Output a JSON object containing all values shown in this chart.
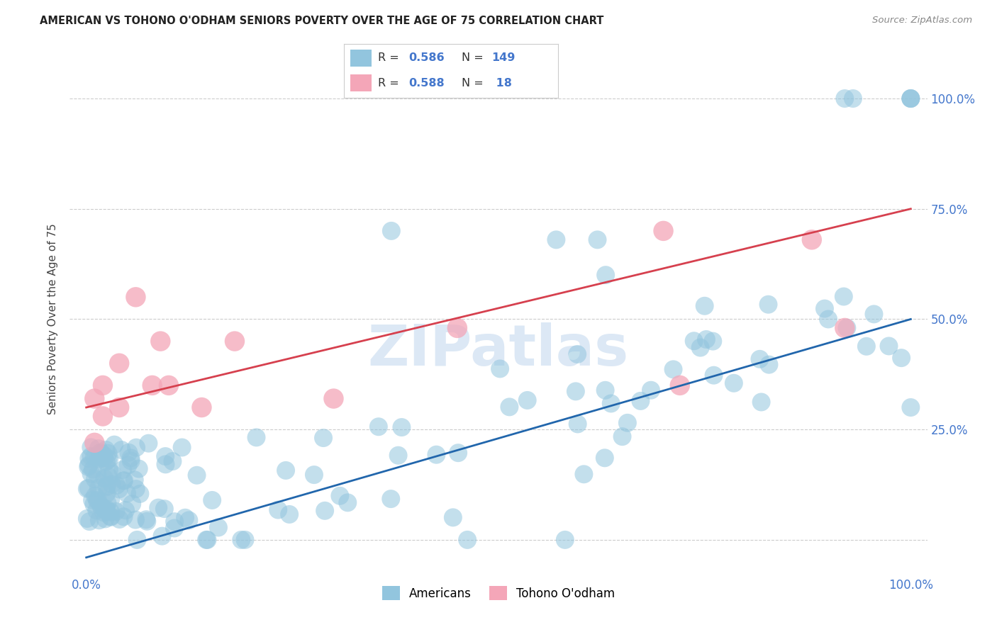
{
  "title": "AMERICAN VS TOHONO O'ODHAM SENIORS POVERTY OVER THE AGE OF 75 CORRELATION CHART",
  "source": "Source: ZipAtlas.com",
  "ylabel": "Seniors Poverty Over the Age of 75",
  "xlim": [
    -0.02,
    1.02
  ],
  "ylim": [
    -0.08,
    1.08
  ],
  "blue_R": 0.586,
  "blue_N": 149,
  "pink_R": 0.588,
  "pink_N": 18,
  "blue_color": "#92c5de",
  "pink_color": "#f4a6b8",
  "blue_line_color": "#2166ac",
  "pink_line_color": "#d6404e",
  "legend_label_blue": "Americans",
  "legend_label_pink": "Tohono O'odham",
  "background_color": "#ffffff",
  "title_color": "#222222",
  "axis_label_color": "#444444",
  "tick_color": "#4477cc",
  "grid_color": "#cccccc",
  "blue_line_x0": 0.0,
  "blue_line_y0": -0.04,
  "blue_line_x1": 1.0,
  "blue_line_y1": 0.5,
  "pink_line_x0": 0.0,
  "pink_line_y0": 0.3,
  "pink_line_x1": 1.0,
  "pink_line_y1": 0.75,
  "source_color": "#888888",
  "watermark_color": "#dce8f5",
  "watermark_text": "ZIPatlas"
}
